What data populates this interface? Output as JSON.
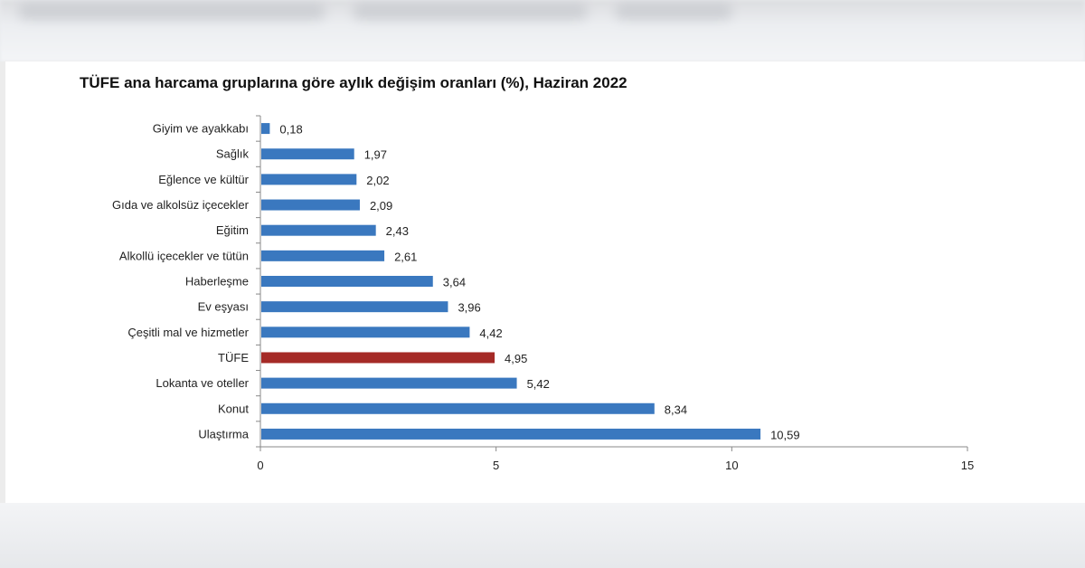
{
  "chart_data": {
    "type": "bar",
    "orientation": "horizontal",
    "title": "TÜFE ana harcama gruplarına göre aylık değişim oranları (%), Haziran 2022",
    "xlabel": "",
    "ylabel": "",
    "xlim": [
      0,
      15
    ],
    "x_ticks": [
      "0",
      "5",
      "10",
      "15"
    ],
    "grid": false,
    "legend": "none",
    "categories": [
      "Giyim ve ayakkabı",
      "Sağlık",
      "Eğlence ve kültür",
      "Gıda ve alkolsüz içecekler",
      "Eğitim",
      "Alkollü içecekler ve tütün",
      "Haberleşme",
      "Ev eşyası",
      "Çeşitli mal ve hizmetler",
      "TÜFE",
      "Lokanta ve oteller",
      "Konut",
      "Ulaştırma"
    ],
    "values": [
      0.18,
      1.97,
      2.02,
      2.09,
      2.43,
      2.61,
      3.64,
      3.96,
      4.42,
      4.95,
      5.42,
      8.34,
      10.59
    ],
    "value_labels": [
      "0,18",
      "1,97",
      "2,02",
      "2,09",
      "2,43",
      "2,61",
      "3,64",
      "3,96",
      "4,42",
      "4,95",
      "5,42",
      "8,34",
      "10,59"
    ],
    "highlight_category": "TÜFE",
    "colors": {
      "bar": "#3a78bf",
      "highlight": "#a52a26",
      "axis": "#888888"
    }
  }
}
